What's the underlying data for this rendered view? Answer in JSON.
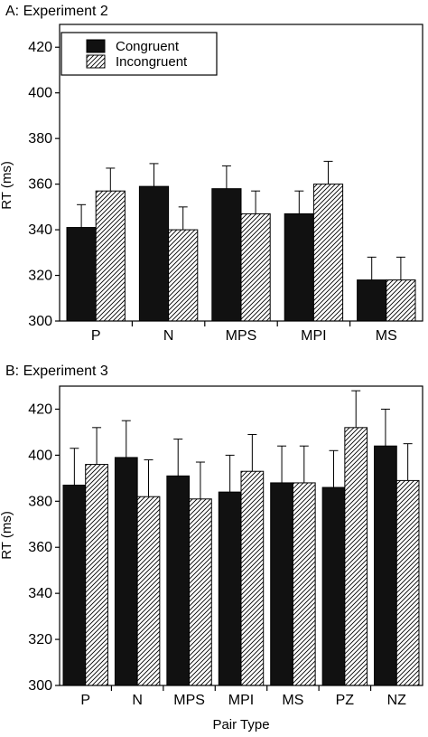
{
  "chart_data": [
    {
      "type": "bar",
      "title": "A: Experiment 2",
      "xlabel": "",
      "ylabel": "RT (ms)",
      "ylim": [
        300,
        430
      ],
      "yticks": [
        300,
        320,
        340,
        360,
        380,
        400,
        420
      ],
      "categories": [
        "P",
        "N",
        "MPS",
        "MPI",
        "MS"
      ],
      "legend": "top-left",
      "series": [
        {
          "name": "Congruent",
          "fill": "solid",
          "color": "#111111",
          "values": [
            341,
            359,
            358,
            347,
            318
          ],
          "errors": [
            10,
            10,
            10,
            10,
            10
          ]
        },
        {
          "name": "Incongruent",
          "fill": "hatched",
          "color": "#111111",
          "values": [
            357,
            340,
            347,
            360,
            318
          ],
          "errors": [
            10,
            10,
            10,
            10,
            10
          ]
        }
      ]
    },
    {
      "type": "bar",
      "title": "B: Experiment 3",
      "xlabel": "Pair Type",
      "ylabel": "RT (ms)",
      "ylim": [
        300,
        430
      ],
      "yticks": [
        300,
        320,
        340,
        360,
        380,
        400,
        420
      ],
      "categories": [
        "P",
        "N",
        "MPS",
        "MPI",
        "MS",
        "PZ",
        "NZ"
      ],
      "series": [
        {
          "name": "Congruent",
          "fill": "solid",
          "color": "#111111",
          "values": [
            387,
            399,
            391,
            384,
            388,
            386,
            404
          ],
          "errors": [
            16,
            16,
            16,
            16,
            16,
            16,
            16
          ]
        },
        {
          "name": "Incongruent",
          "fill": "hatched",
          "color": "#111111",
          "values": [
            396,
            382,
            381,
            393,
            388,
            412,
            389
          ],
          "errors": [
            16,
            16,
            16,
            16,
            16,
            16,
            16
          ]
        }
      ]
    }
  ]
}
